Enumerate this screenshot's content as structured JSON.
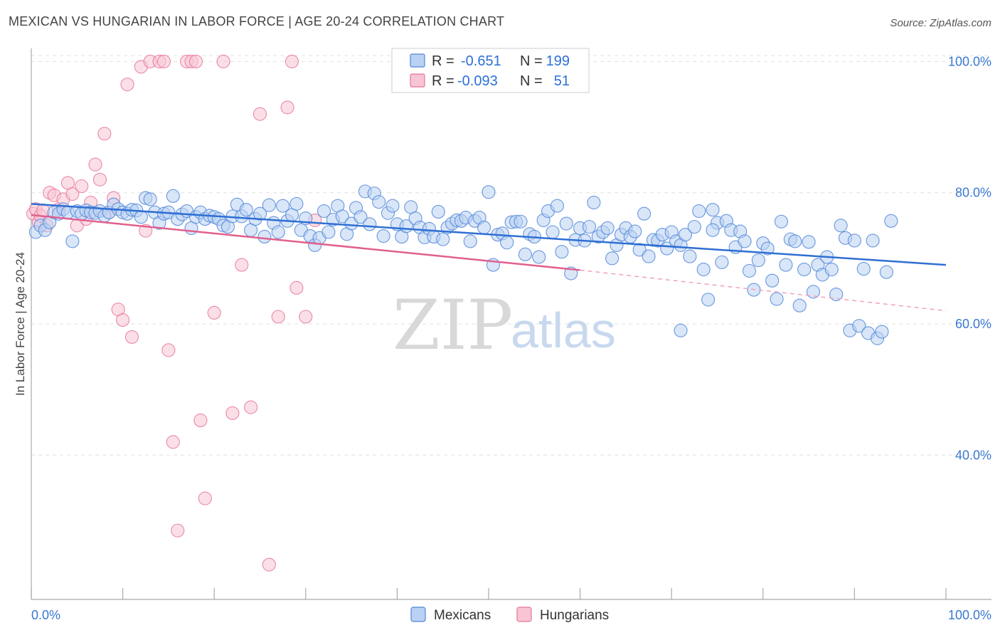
{
  "header": {
    "title": "MEXICAN VS HUNGARIAN IN LABOR FORCE | AGE 20-24 CORRELATION CHART",
    "source": "Source: ZipAtlas.com"
  },
  "watermark": {
    "zip": "ZIP",
    "atlas": "atlas"
  },
  "legend": {
    "rows": [
      {
        "r_label": "R =",
        "r_value": "-0.651",
        "n_label": "N =",
        "n_value": "199",
        "color": "#a9c7f2"
      },
      {
        "r_label": "R =",
        "r_value": "-0.093",
        "n_label": "N =",
        "n_value": "51",
        "color": "#f5b8ca"
      }
    ]
  },
  "bottom_legend": [
    "Mexicans",
    "Hungarians"
  ],
  "chart_data": {
    "type": "scatter",
    "title": "MEXICAN VS HUNGARIAN IN LABOR FORCE | AGE 20-24 CORRELATION CHART",
    "xlabel": "",
    "ylabel": "In Labor Force | Age 20-24",
    "xlim": [
      0,
      100
    ],
    "ylim": [
      18,
      102
    ],
    "x_tick_labels": [
      "0.0%",
      "100.0%"
    ],
    "y_tick_labels": [
      "100.0%",
      "80.0%",
      "60.0%",
      "40.0%"
    ],
    "y_ticks": [
      100,
      80,
      60,
      40
    ],
    "grid": true,
    "legend_position": "top-center",
    "colors": {
      "mexicans": "#4f86d9",
      "mexicans_fill": "#b9d1f3",
      "hungarians": "#e8759a",
      "hungarians_fill": "#f7c5d3"
    },
    "series": [
      {
        "name": "Mexicans",
        "trend": {
          "x": [
            0,
            100
          ],
          "y": [
            78.3,
            69.0
          ]
        },
        "points": [
          [
            0.5,
            74.0
          ],
          [
            1.0,
            75.0
          ],
          [
            1.5,
            74.3
          ],
          [
            2.0,
            75.5
          ],
          [
            2.5,
            77.0
          ],
          [
            3.0,
            76.8
          ],
          [
            3.5,
            77.5
          ],
          [
            4.0,
            77.0
          ],
          [
            4.5,
            72.6
          ],
          [
            5.0,
            77.2
          ],
          [
            5.5,
            76.8
          ],
          [
            6.0,
            77.3
          ],
          [
            6.5,
            77.0
          ],
          [
            7.0,
            76.9
          ],
          [
            7.5,
            77.2
          ],
          [
            8.0,
            76.5
          ],
          [
            8.5,
            77.0
          ],
          [
            9.0,
            78.2
          ],
          [
            9.5,
            77.5
          ],
          [
            10.0,
            77.0
          ],
          [
            10.5,
            76.8
          ],
          [
            11.0,
            77.4
          ],
          [
            11.5,
            77.3
          ],
          [
            12.0,
            76.3
          ],
          [
            12.5,
            79.2
          ],
          [
            13.0,
            79.0
          ],
          [
            13.5,
            77.0
          ],
          [
            14.0,
            75.4
          ],
          [
            14.5,
            76.8
          ],
          [
            15.0,
            77.0
          ],
          [
            15.5,
            79.5
          ],
          [
            16.0,
            76.0
          ],
          [
            16.5,
            76.7
          ],
          [
            17.0,
            77.2
          ],
          [
            17.5,
            74.6
          ],
          [
            18.0,
            76.3
          ],
          [
            18.5,
            77.0
          ],
          [
            19.0,
            76.0
          ],
          [
            19.5,
            76.5
          ],
          [
            20.0,
            76.3
          ],
          [
            20.5,
            76.0
          ],
          [
            21.0,
            75.0
          ],
          [
            21.5,
            74.8
          ],
          [
            22.0,
            76.4
          ],
          [
            22.5,
            78.2
          ],
          [
            23.0,
            76.4
          ],
          [
            23.5,
            77.4
          ],
          [
            24.0,
            74.3
          ],
          [
            24.5,
            76.0
          ],
          [
            25.0,
            76.8
          ],
          [
            25.5,
            73.3
          ],
          [
            26.0,
            78.1
          ],
          [
            26.5,
            75.4
          ],
          [
            27.0,
            74.0
          ],
          [
            27.5,
            78.0
          ],
          [
            28.0,
            75.7
          ],
          [
            28.5,
            76.6
          ],
          [
            29.0,
            78.3
          ],
          [
            29.5,
            74.3
          ],
          [
            30.0,
            76.1
          ],
          [
            30.5,
            73.4
          ],
          [
            31.0,
            72.0
          ],
          [
            31.5,
            73.1
          ],
          [
            32.0,
            77.2
          ],
          [
            32.5,
            74.0
          ],
          [
            33.0,
            75.9
          ],
          [
            33.5,
            78.0
          ],
          [
            34.0,
            76.4
          ],
          [
            34.5,
            73.7
          ],
          [
            35.0,
            75.3
          ],
          [
            35.5,
            77.7
          ],
          [
            36.0,
            76.3
          ],
          [
            36.5,
            80.2
          ],
          [
            37.0,
            75.2
          ],
          [
            37.5,
            79.9
          ],
          [
            38.0,
            78.6
          ],
          [
            38.5,
            73.4
          ],
          [
            39.0,
            76.9
          ],
          [
            39.5,
            78.0
          ],
          [
            40.0,
            75.2
          ],
          [
            40.5,
            73.3
          ],
          [
            41.0,
            74.9
          ],
          [
            41.5,
            77.8
          ],
          [
            42.0,
            76.1
          ],
          [
            42.5,
            74.7
          ],
          [
            43.0,
            73.2
          ],
          [
            43.5,
            74.5
          ],
          [
            44.0,
            73.3
          ],
          [
            44.5,
            77.1
          ],
          [
            45.0,
            72.9
          ],
          [
            45.5,
            74.7
          ],
          [
            46.0,
            75.3
          ],
          [
            46.5,
            75.8
          ],
          [
            47.0,
            75.7
          ],
          [
            47.5,
            76.2
          ],
          [
            48.0,
            72.6
          ],
          [
            48.5,
            75.7
          ],
          [
            49.0,
            76.2
          ],
          [
            49.5,
            74.7
          ],
          [
            50.0,
            80.1
          ],
          [
            50.5,
            69.0
          ],
          [
            51.0,
            73.6
          ],
          [
            51.5,
            73.8
          ],
          [
            52.0,
            72.4
          ],
          [
            52.5,
            75.5
          ],
          [
            53.0,
            75.6
          ],
          [
            53.5,
            75.6
          ],
          [
            54.0,
            70.6
          ],
          [
            54.5,
            73.7
          ],
          [
            55.0,
            73.3
          ],
          [
            55.5,
            70.2
          ],
          [
            56.0,
            75.8
          ],
          [
            56.5,
            77.2
          ],
          [
            57.0,
            74.0
          ],
          [
            57.5,
            78.0
          ],
          [
            58.0,
            71.0
          ],
          [
            58.5,
            75.3
          ],
          [
            59.0,
            67.7
          ],
          [
            59.5,
            72.8
          ],
          [
            60.0,
            74.6
          ],
          [
            60.5,
            72.7
          ],
          [
            61.0,
            74.8
          ],
          [
            61.5,
            78.5
          ],
          [
            62.0,
            73.3
          ],
          [
            62.5,
            74.0
          ],
          [
            63.0,
            74.6
          ],
          [
            63.5,
            70.0
          ],
          [
            64.0,
            72.0
          ],
          [
            64.5,
            73.6
          ],
          [
            65.0,
            74.6
          ],
          [
            65.5,
            73.3
          ],
          [
            66.0,
            74.1
          ],
          [
            66.5,
            71.3
          ],
          [
            67.0,
            76.8
          ],
          [
            67.5,
            70.3
          ],
          [
            68.0,
            72.8
          ],
          [
            68.5,
            72.7
          ],
          [
            69.0,
            73.6
          ],
          [
            69.5,
            71.5
          ],
          [
            70.0,
            74.0
          ],
          [
            70.5,
            72.6
          ],
          [
            71.0,
            72.0
          ],
          [
            71.5,
            73.6
          ],
          [
            72.0,
            70.3
          ],
          [
            72.5,
            74.8
          ],
          [
            73.0,
            77.2
          ],
          [
            73.5,
            68.3
          ],
          [
            74.0,
            63.7
          ],
          [
            74.5,
            77.4
          ],
          [
            75.0,
            75.4
          ],
          [
            75.5,
            69.4
          ],
          [
            76.0,
            75.7
          ],
          [
            76.5,
            74.3
          ],
          [
            77.0,
            71.7
          ],
          [
            77.5,
            74.1
          ],
          [
            78.0,
            72.6
          ],
          [
            78.5,
            68.1
          ],
          [
            79.0,
            65.2
          ],
          [
            79.5,
            69.7
          ],
          [
            80.0,
            72.3
          ],
          [
            80.5,
            71.5
          ],
          [
            81.0,
            66.6
          ],
          [
            81.5,
            63.8
          ],
          [
            82.0,
            75.6
          ],
          [
            82.5,
            69.0
          ],
          [
            83.0,
            72.9
          ],
          [
            83.5,
            72.6
          ],
          [
            84.0,
            62.8
          ],
          [
            84.5,
            68.3
          ],
          [
            85.0,
            72.5
          ],
          [
            85.5,
            64.9
          ],
          [
            86.0,
            69.0
          ],
          [
            86.5,
            67.5
          ],
          [
            87.0,
            70.2
          ],
          [
            87.5,
            68.3
          ],
          [
            88.0,
            64.5
          ],
          [
            88.5,
            75.0
          ],
          [
            89.0,
            73.1
          ],
          [
            89.5,
            59.0
          ],
          [
            90.0,
            72.7
          ],
          [
            90.5,
            59.7
          ],
          [
            91.0,
            68.4
          ],
          [
            91.5,
            58.6
          ],
          [
            92.0,
            72.7
          ],
          [
            92.5,
            57.8
          ],
          [
            93.0,
            58.8
          ],
          [
            93.5,
            67.9
          ],
          [
            94.0,
            75.7
          ],
          [
            74.5,
            74.3
          ],
          [
            71.0,
            59.0
          ]
        ]
      },
      {
        "name": "Hungarians",
        "trend": {
          "x": [
            0,
            60
          ],
          "y": [
            76.6,
            68.2
          ]
        },
        "trend_dashed": {
          "x": [
            60,
            100
          ],
          "y": [
            68.2,
            62.0
          ]
        },
        "points": [
          [
            0.2,
            76.8
          ],
          [
            0.5,
            77.5
          ],
          [
            0.8,
            75.5
          ],
          [
            1.0,
            76.5
          ],
          [
            1.3,
            77.3
          ],
          [
            1.7,
            75.0
          ],
          [
            2.0,
            80.0
          ],
          [
            2.5,
            79.6
          ],
          [
            3.0,
            77.5
          ],
          [
            3.5,
            79.0
          ],
          [
            4.0,
            81.5
          ],
          [
            4.5,
            79.8
          ],
          [
            5.0,
            75.0
          ],
          [
            5.5,
            81.0
          ],
          [
            6.0,
            76.0
          ],
          [
            6.5,
            78.5
          ],
          [
            7.0,
            84.3
          ],
          [
            7.5,
            82.0
          ],
          [
            8.0,
            89.0
          ],
          [
            9.0,
            79.2
          ],
          [
            9.5,
            62.2
          ],
          [
            10.0,
            60.6
          ],
          [
            11.0,
            58.0
          ],
          [
            12.0,
            99.2
          ],
          [
            13.0,
            100.0
          ],
          [
            14.0,
            100.0
          ],
          [
            14.5,
            100.0
          ],
          [
            15.0,
            56.0
          ],
          [
            15.5,
            42.0
          ],
          [
            16.0,
            28.5
          ],
          [
            17.0,
            100.0
          ],
          [
            17.5,
            100.0
          ],
          [
            18.0,
            100.0
          ],
          [
            18.5,
            45.3
          ],
          [
            19.0,
            33.4
          ],
          [
            20.0,
            61.7
          ],
          [
            21.0,
            100.0
          ],
          [
            22.0,
            46.4
          ],
          [
            23.0,
            69.0
          ],
          [
            24.0,
            47.3
          ],
          [
            25.0,
            92.0
          ],
          [
            26.0,
            23.3
          ],
          [
            27.0,
            61.1
          ],
          [
            28.0,
            93.0
          ],
          [
            28.5,
            100.0
          ],
          [
            29.0,
            65.5
          ],
          [
            30.0,
            61.1
          ],
          [
            31.0,
            75.8
          ],
          [
            10.5,
            96.5
          ],
          [
            12.5,
            74.2
          ],
          [
            8.5,
            77.0
          ]
        ]
      }
    ]
  }
}
